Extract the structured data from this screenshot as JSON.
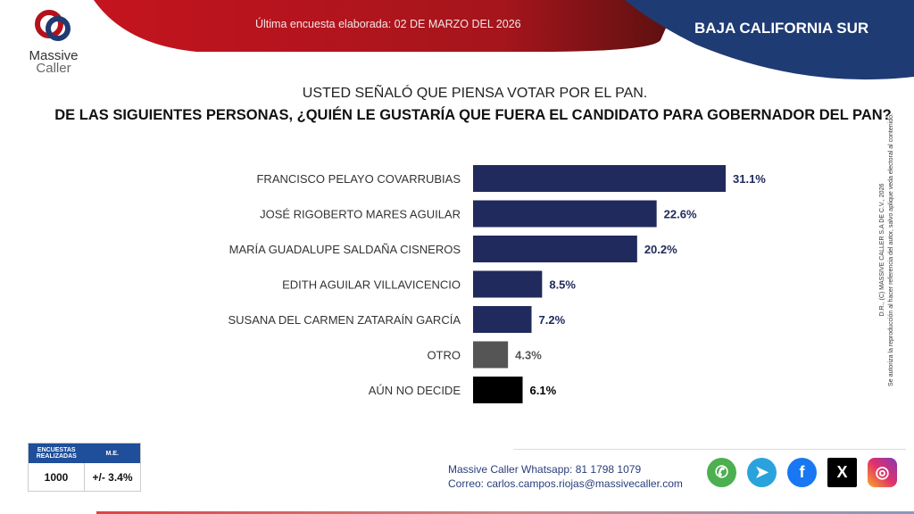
{
  "header": {
    "subtitle": "Última encuesta elaborada: 02 DE MARZO DEL 2026",
    "region": "BAJA CALIFORNIA SUR",
    "brand_line1": "Massive",
    "brand_line2": "Caller"
  },
  "question": {
    "line1": "USTED SEÑALÓ QUE PIENSA VOTAR POR EL PAN.",
    "line2": "DE LAS SIGUIENTES PERSONAS, ¿QUIÉN LE GUSTARÍA QUE FUERA EL CANDIDATO PARA GOBERNADOR DEL PAN?"
  },
  "chart_data": {
    "type": "bar",
    "orientation": "horizontal",
    "categories": [
      "FRANCISCO PELAYO COVARRUBIAS",
      "JOSÉ RIGOBERTO MARES AGUILAR",
      "MARÍA GUADALUPE SALDAÑA CISNEROS",
      "EDITH AGUILAR VILLAVICENCIO",
      "SUSANA DEL CARMEN ZATARAÍN GARCÍA",
      "OTRO",
      "AÚN NO DECIDE"
    ],
    "values": [
      31.1,
      22.6,
      20.2,
      8.5,
      7.2,
      4.3,
      6.1
    ],
    "labels": [
      "31.1%",
      "22.6%",
      "20.2%",
      "8.5%",
      "7.2%",
      "4.3%",
      "6.1%"
    ],
    "colors": [
      "#212a5c",
      "#212a5c",
      "#212a5c",
      "#212a5c",
      "#212a5c",
      "#555555",
      "#000000"
    ],
    "label_colors": [
      "#212a5c",
      "#212a5c",
      "#212a5c",
      "#212a5c",
      "#212a5c",
      "#555555",
      "#000000"
    ],
    "grid": false
  },
  "stats": {
    "h1": "ENCUESTAS REALIZADAS",
    "h2": "M.E.",
    "v1": "1000",
    "v2": "+/- 3.4%"
  },
  "contact": {
    "whatsapp": "Massive Caller Whatsapp: 81 1798 1079",
    "email": "Correo: carlos.campos.riojas@massivecaller.com"
  },
  "social": [
    "whatsapp-icon",
    "telegram-icon",
    "facebook-icon",
    "x-icon",
    "instagram-icon"
  ],
  "copyright": {
    "line1": "D.R., (C) MASSIVE CALLER S.A DE C.V., 2026",
    "line2": "Se autoriza la reproducción al hacer referencia del autor, salvo aplique veda electoral al contenido."
  }
}
